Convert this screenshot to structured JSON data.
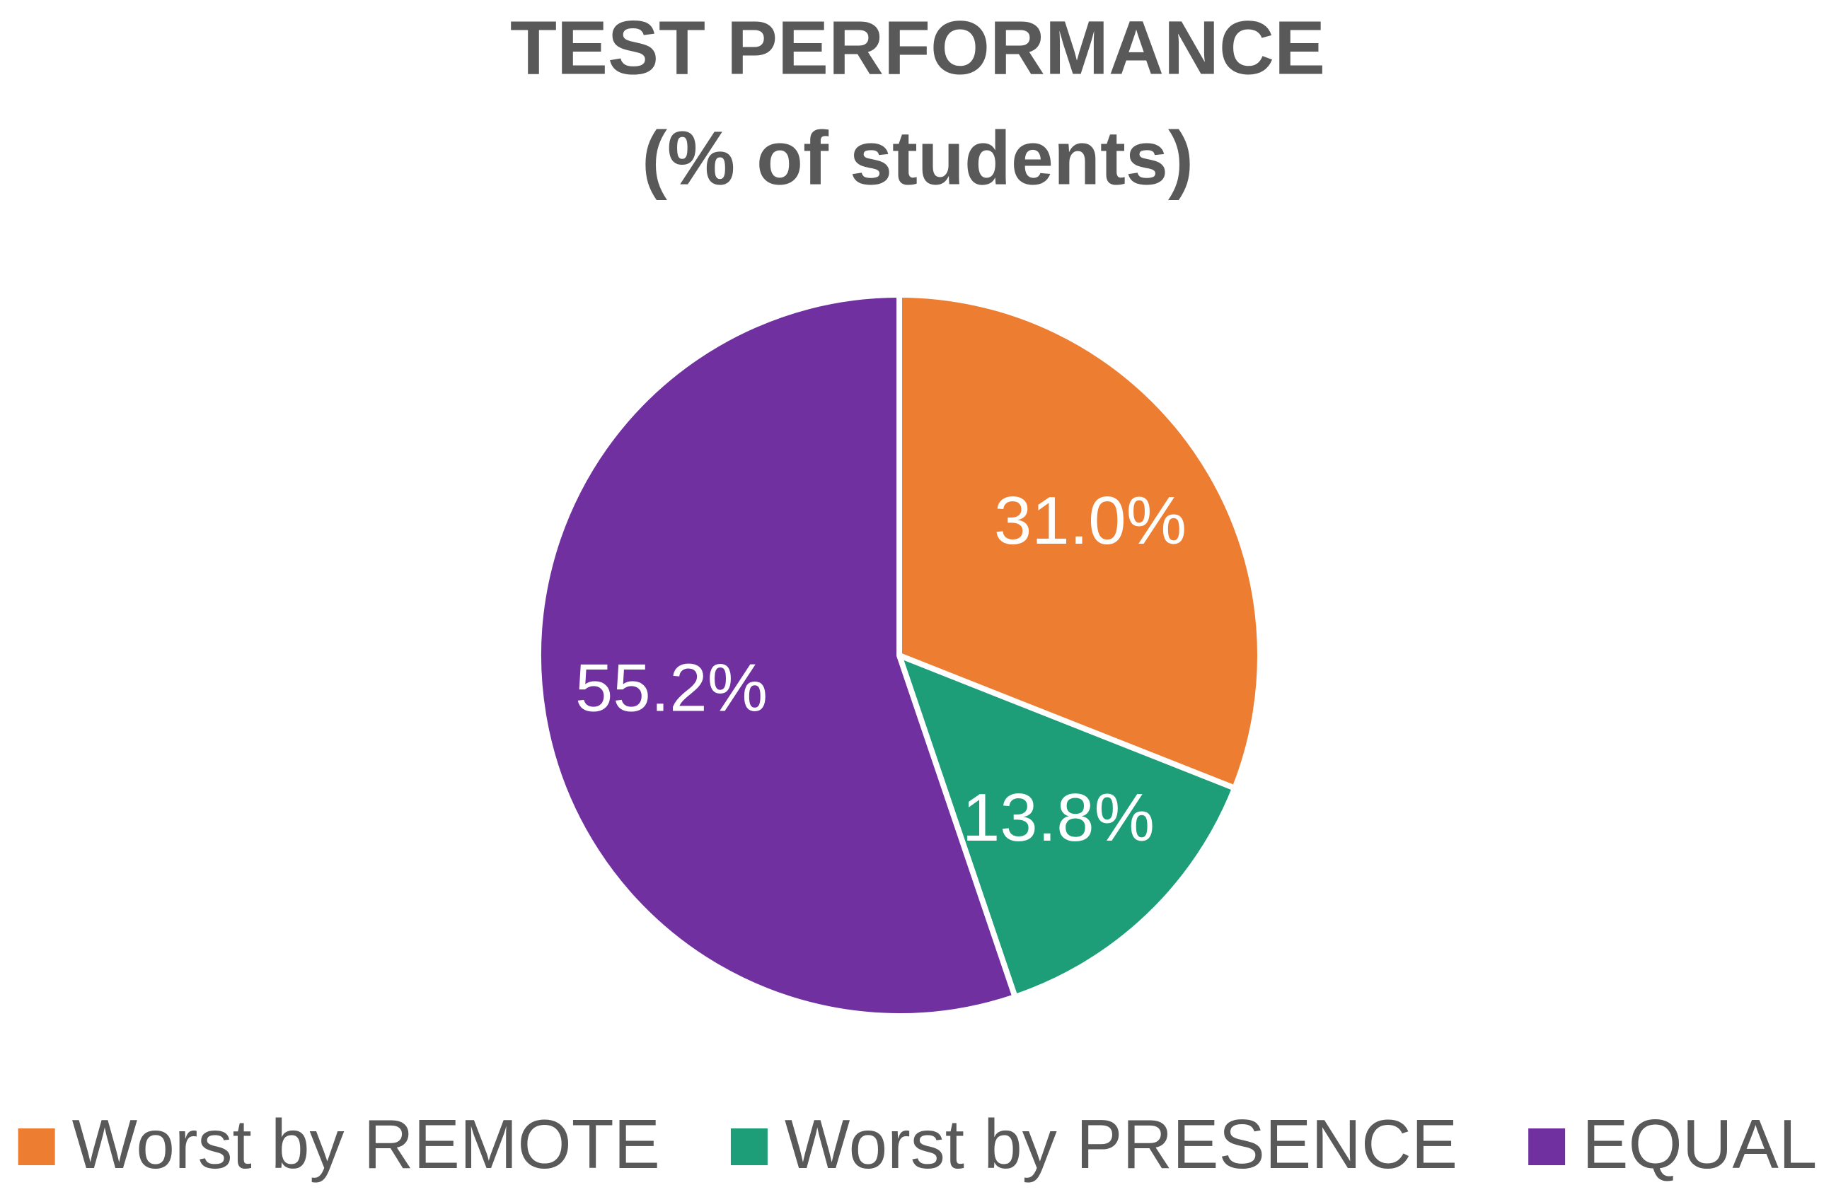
{
  "chart_data": {
    "type": "pie",
    "title": "TEST PERFORMANCE",
    "subtitle": "(% of students)",
    "categories": [
      "Worst by REMOTE",
      "Worst by PRESENCE",
      "EQUAL"
    ],
    "values": [
      31.0,
      13.8,
      55.2
    ],
    "value_labels": [
      "31.0%",
      "13.8%",
      "55.2%"
    ],
    "colors": [
      "#ed7d31",
      "#1e9e78",
      "#7030a0"
    ],
    "legend": "bottom"
  }
}
